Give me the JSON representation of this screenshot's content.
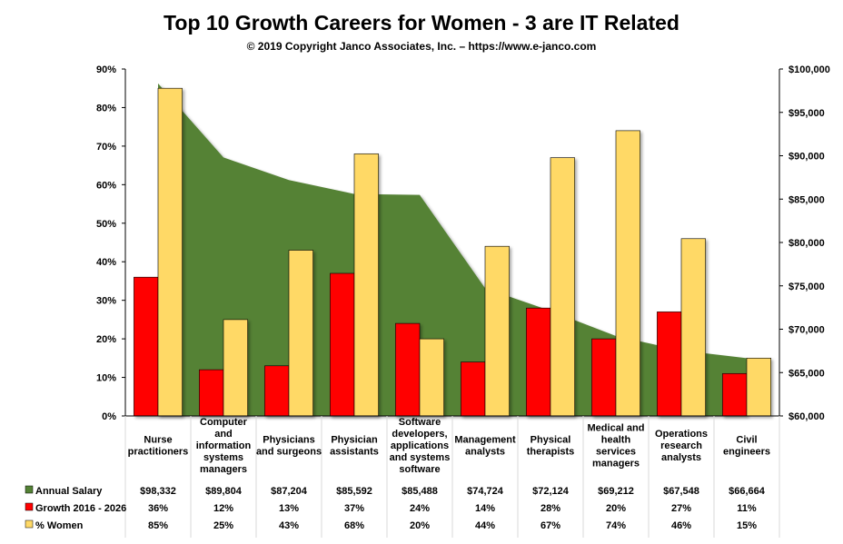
{
  "chart_data": {
    "type": "bar",
    "title": "Top 10 Growth Careers for Women - 3 are IT Related",
    "subtitle": "© 2019 Copyright Janco Associates, Inc. – https://www.e-janco.com",
    "categories": [
      [
        "Nurse",
        "practitioners"
      ],
      [
        "Computer",
        "and",
        "information",
        "systems",
        "managers"
      ],
      [
        "Physicians",
        "and surgeons"
      ],
      [
        "Physician",
        "assistants"
      ],
      [
        "Software",
        "developers,",
        "applications",
        "and systems",
        "software"
      ],
      [
        "Management",
        "analysts"
      ],
      [
        "Physical",
        "therapists"
      ],
      [
        "Medical and",
        "health",
        "services",
        "managers"
      ],
      [
        "Operations",
        "research",
        "analysts"
      ],
      [
        "Civil",
        "engineers"
      ]
    ],
    "series": [
      {
        "name": "Annual Salary",
        "type": "area",
        "axis": "right",
        "color": "#548235",
        "values": [
          98332,
          89804,
          87204,
          85592,
          85488,
          74724,
          72124,
          69212,
          67548,
          66664
        ],
        "labels": [
          "$98,332",
          "$89,804",
          "$87,204",
          "$85,592",
          "$85,488",
          "$74,724",
          "$72,124",
          "$69,212",
          "$67,548",
          "$66,664"
        ]
      },
      {
        "name": "Growth 2016 - 2026",
        "type": "bar",
        "axis": "left",
        "color": "#ff0000",
        "values": [
          36,
          12,
          13,
          37,
          24,
          14,
          28,
          20,
          27,
          11
        ],
        "labels": [
          "36%",
          "12%",
          "13%",
          "37%",
          "24%",
          "14%",
          "28%",
          "20%",
          "27%",
          "11%"
        ]
      },
      {
        "name": "% Women",
        "type": "bar",
        "axis": "left",
        "color": "#ffd966",
        "values": [
          85,
          25,
          43,
          68,
          20,
          44,
          67,
          74,
          46,
          15
        ],
        "labels": [
          "85%",
          "25%",
          "43%",
          "68%",
          "20%",
          "44%",
          "67%",
          "74%",
          "46%",
          "15%"
        ]
      }
    ],
    "left_axis": {
      "min": 0,
      "max": 90,
      "ticks": [
        "0%",
        "10%",
        "20%",
        "30%",
        "40%",
        "50%",
        "60%",
        "70%",
        "80%",
        "90%"
      ]
    },
    "right_axis": {
      "min": 60000,
      "max": 100000,
      "ticks": [
        "$60,000",
        "$65,000",
        "$70,000",
        "$75,000",
        "$80,000",
        "$85,000",
        "$90,000",
        "$95,000",
        "$100,000"
      ]
    },
    "grid": false,
    "legend": "data-table-below"
  }
}
